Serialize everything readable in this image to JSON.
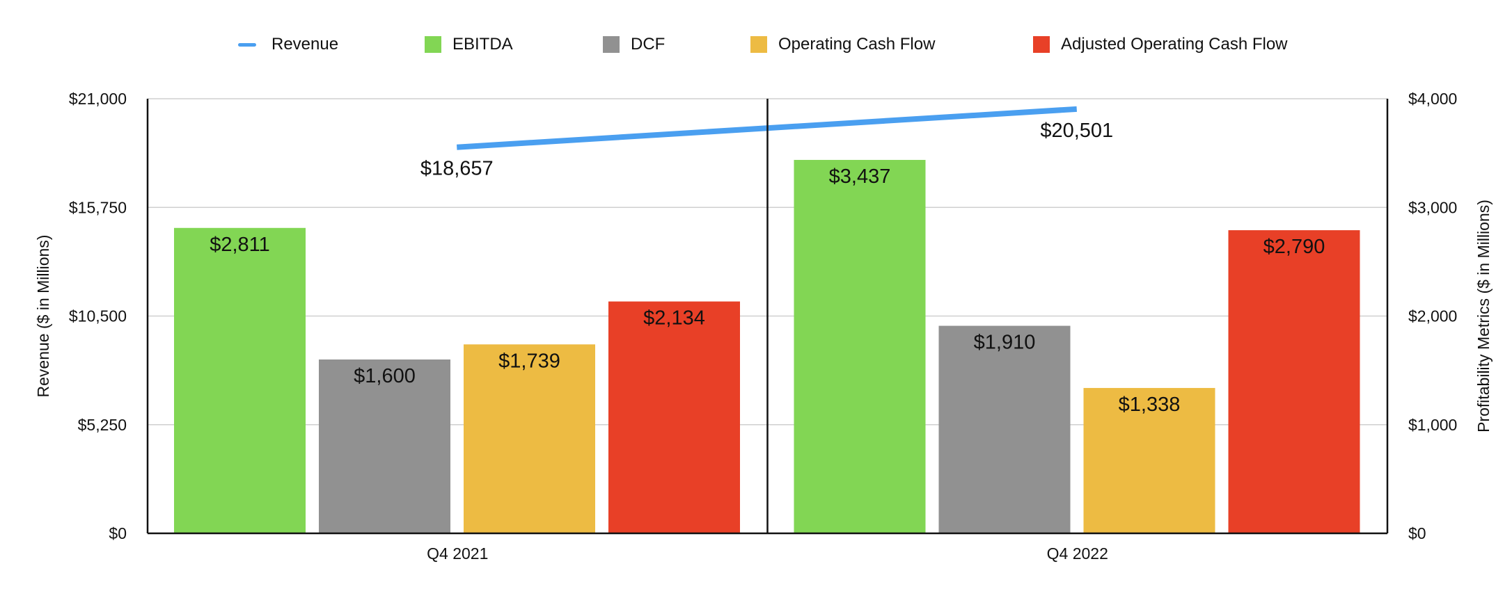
{
  "chart_data": {
    "type": "bar",
    "categories": [
      "Q4 2021",
      "Q4 2022"
    ],
    "series": [
      {
        "name": "Revenue",
        "kind": "line",
        "axis": "left",
        "values": [
          18657,
          20501
        ],
        "labels": [
          "$18,657",
          "$20,501"
        ],
        "color": "#4a9ff0"
      },
      {
        "name": "EBITDA",
        "kind": "bar",
        "axis": "right",
        "values": [
          2811,
          3437
        ],
        "labels": [
          "$2,811",
          "$3,437"
        ],
        "color": "#82d654"
      },
      {
        "name": "DCF",
        "kind": "bar",
        "axis": "right",
        "values": [
          1600,
          1910
        ],
        "labels": [
          "$1,600",
          "$1,910"
        ],
        "color": "#919191"
      },
      {
        "name": "Operating Cash Flow",
        "kind": "bar",
        "axis": "right",
        "values": [
          1739,
          1338
        ],
        "labels": [
          "$1,739",
          "$1,338"
        ],
        "color": "#edbb43"
      },
      {
        "name": "Adjusted Operating Cash Flow",
        "kind": "bar",
        "axis": "right",
        "values": [
          2134,
          2790
        ],
        "labels": [
          "$2,134",
          "$2,790"
        ],
        "color": "#e84027"
      }
    ],
    "y_left": {
      "label": "Revenue ($ in Millions)",
      "ylim": [
        0,
        21000
      ],
      "ticks": [
        0,
        5250,
        10500,
        15750,
        21000
      ],
      "tick_labels": [
        "$0",
        "$5,250",
        "$10,500",
        "$15,750",
        "$21,000"
      ]
    },
    "y_right": {
      "label": "Profitability Metrics ($ in Millions)",
      "ylim": [
        0,
        4000
      ],
      "ticks": [
        0,
        1000,
        2000,
        3000,
        4000
      ],
      "tick_labels": [
        "$0",
        "$1,000",
        "$2,000",
        "$3,000",
        "$4,000"
      ]
    },
    "grid": true,
    "legend_position": "top-center"
  }
}
